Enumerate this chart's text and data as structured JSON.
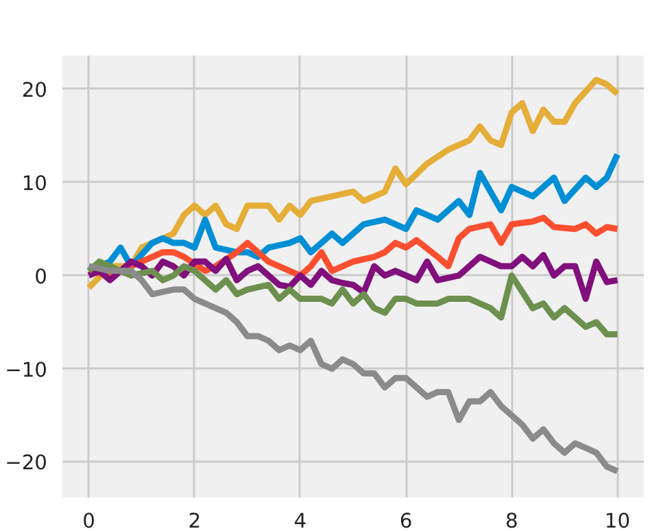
{
  "chart_data": {
    "type": "line",
    "xlim": [
      -0.5,
      10.5
    ],
    "ylim": [
      -23.8,
      23.6
    ],
    "xticks": [
      0,
      2,
      4,
      6,
      8,
      10
    ],
    "yticks": [
      -20,
      -10,
      0,
      10,
      20
    ],
    "grid": true,
    "line_style": "solid",
    "series": [
      {
        "color": "#e5ae38",
        "x": [
          0,
          0.4,
          0.8,
          1.0,
          1.4,
          1.6,
          1.8,
          2.0,
          2.2,
          2.4,
          2.6,
          2.8,
          3.0,
          3.4,
          3.6,
          3.8,
          4.0,
          4.2,
          4.6,
          5.0,
          5.2,
          5.6,
          5.8,
          6.0,
          6.4,
          6.8,
          7.2,
          7.4,
          7.6,
          7.8,
          8.0,
          8.2,
          8.4,
          8.6,
          8.8,
          9.0,
          9.2,
          9.6,
          9.8,
          10
        ],
        "values": [
          -1.3,
          1,
          1,
          3,
          4,
          4.5,
          6.5,
          7.5,
          6.5,
          7.5,
          5.5,
          5,
          7.5,
          7.5,
          6,
          7.5,
          6.5,
          8,
          8.5,
          9,
          8,
          9,
          11.5,
          9.8,
          12,
          13.5,
          14.5,
          16,
          14.5,
          14,
          17.5,
          18.5,
          15.5,
          17.8,
          16.5,
          16.5,
          18.5,
          21,
          20.5,
          19.5
        ]
      },
      {
        "color": "#008fd5",
        "x": [
          0,
          0.4,
          0.6,
          0.8,
          1.2,
          1.4,
          1.6,
          1.8,
          2.0,
          2.2,
          2.4,
          2.8,
          3.0,
          3.2,
          3.4,
          3.8,
          4.0,
          4.2,
          4.6,
          4.8,
          5.2,
          5.6,
          6.0,
          6.2,
          6.6,
          7.0,
          7.2,
          7.4,
          7.8,
          8.0,
          8.4,
          8.8,
          9.0,
          9.4,
          9.6,
          9.8,
          10
        ],
        "values": [
          0.5,
          1.5,
          3,
          1,
          3.5,
          4,
          3.5,
          3.5,
          3,
          6,
          3,
          2.5,
          2.5,
          2,
          3,
          3.5,
          4,
          2.5,
          4.5,
          3.5,
          5.5,
          6,
          5,
          7,
          6,
          8,
          6.5,
          11,
          7,
          9.5,
          8.5,
          10.5,
          8,
          10.5,
          9.5,
          10.5,
          13
        ]
      },
      {
        "color": "#fc4f30",
        "x": [
          0,
          0.4,
          0.8,
          1.0,
          1.4,
          1.6,
          1.8,
          2.2,
          2.4,
          2.8,
          3.0,
          3.2,
          3.4,
          3.6,
          3.8,
          4.0,
          4.2,
          4.4,
          4.6,
          4.8,
          5.0,
          5.4,
          5.6,
          5.8,
          6.0,
          6.2,
          6.6,
          6.8,
          7.0,
          7.2,
          7.6,
          7.8,
          8.0,
          8.4,
          8.6,
          8.8,
          9.2,
          9.4,
          9.6,
          9.8,
          10
        ],
        "values": [
          0.5,
          0,
          1,
          1.5,
          2.5,
          2.5,
          2,
          0.5,
          1,
          2.5,
          3.5,
          2.5,
          1.5,
          1,
          0.5,
          0,
          1,
          2.5,
          0.5,
          1,
          1.5,
          2,
          2.5,
          3.5,
          3,
          3.8,
          2,
          1,
          4,
          5,
          5.5,
          3.5,
          5.5,
          5.8,
          6.2,
          5.2,
          5,
          5.5,
          4.5,
          5.2,
          5
        ]
      },
      {
        "color": "#810f7c",
        "x": [
          0,
          0.2,
          0.4,
          0.8,
          1.0,
          1.2,
          1.4,
          1.6,
          1.8,
          2.0,
          2.2,
          2.4,
          2.6,
          2.8,
          3.0,
          3.2,
          3.4,
          3.6,
          3.8,
          4.0,
          4.2,
          4.4,
          4.6,
          4.8,
          5.0,
          5.2,
          5.4,
          5.6,
          5.8,
          6.0,
          6.2,
          6.4,
          6.6,
          7.0,
          7.4,
          7.8,
          8.0,
          8.2,
          8.4,
          8.6,
          8.8,
          9.0,
          9.2,
          9.4,
          9.6,
          9.8,
          10
        ],
        "values": [
          0,
          0.5,
          -0.5,
          1.5,
          1,
          0,
          1.5,
          1,
          0,
          1.5,
          1.5,
          0.5,
          1.8,
          -0.5,
          0.5,
          1,
          0,
          -1,
          -1.2,
          0,
          -1,
          0.5,
          -0.5,
          -0.8,
          -1,
          -1.8,
          1,
          0,
          0.5,
          0,
          -0.5,
          1.5,
          -0.5,
          0,
          2,
          1,
          1,
          2,
          1,
          2.2,
          0,
          1,
          1,
          -2.5,
          1.5,
          -0.7,
          -0.5
        ]
      },
      {
        "color": "#6d904f",
        "x": [
          0,
          0.2,
          0.4,
          0.8,
          1.2,
          1.4,
          1.6,
          1.8,
          2.0,
          2.4,
          2.6,
          2.8,
          3.0,
          3.4,
          3.6,
          3.8,
          4.0,
          4.4,
          4.6,
          4.8,
          5.0,
          5.2,
          5.4,
          5.6,
          5.8,
          6.0,
          6.2,
          6.6,
          6.8,
          7.2,
          7.6,
          7.8,
          8.0,
          8.4,
          8.6,
          8.8,
          9.0,
          9.4,
          9.6,
          9.8,
          10
        ],
        "values": [
          0.5,
          1.5,
          1,
          0,
          0.5,
          -0.5,
          0,
          1,
          0.5,
          -1.5,
          -0.5,
          -2,
          -1.5,
          -1,
          -2.5,
          -1.5,
          -2.5,
          -2.5,
          -3,
          -1.5,
          -3,
          -2,
          -3.5,
          -4,
          -2.5,
          -2.5,
          -3,
          -3,
          -2.5,
          -2.5,
          -3.5,
          -4.5,
          0,
          -3.5,
          -3,
          -4.5,
          -3.5,
          -5.5,
          -5,
          -6.3,
          -6.3
        ]
      },
      {
        "color": "#8b8b8b",
        "x": [
          0,
          0.4,
          0.8,
          1.0,
          1.2,
          1.6,
          1.8,
          2.0,
          2.2,
          2.4,
          2.6,
          2.8,
          3.0,
          3.2,
          3.4,
          3.6,
          3.8,
          4.0,
          4.2,
          4.4,
          4.6,
          4.8,
          5.0,
          5.2,
          5.4,
          5.6,
          5.8,
          6.0,
          6.2,
          6.4,
          6.6,
          6.8,
          7.0,
          7.2,
          7.4,
          7.6,
          7.8,
          8.0,
          8.2,
          8.4,
          8.6,
          8.8,
          9.0,
          9.2,
          9.4,
          9.6,
          9.8,
          10
        ],
        "values": [
          1,
          0.5,
          0.5,
          -0.5,
          -2,
          -1.5,
          -1.5,
          -2.5,
          -3,
          -3.5,
          -4,
          -5,
          -6.5,
          -6.5,
          -7,
          -8,
          -7.5,
          -8,
          -7,
          -9.5,
          -10,
          -9,
          -9.5,
          -10.5,
          -10.5,
          -12,
          -11,
          -11,
          -12,
          -13,
          -12.5,
          -12.5,
          -15.5,
          -13.5,
          -13.5,
          -12.5,
          -14,
          -15,
          -16,
          -17.5,
          -16.5,
          -18,
          -19,
          -18,
          -18.5,
          -19,
          -20.5,
          -21
        ]
      }
    ]
  }
}
